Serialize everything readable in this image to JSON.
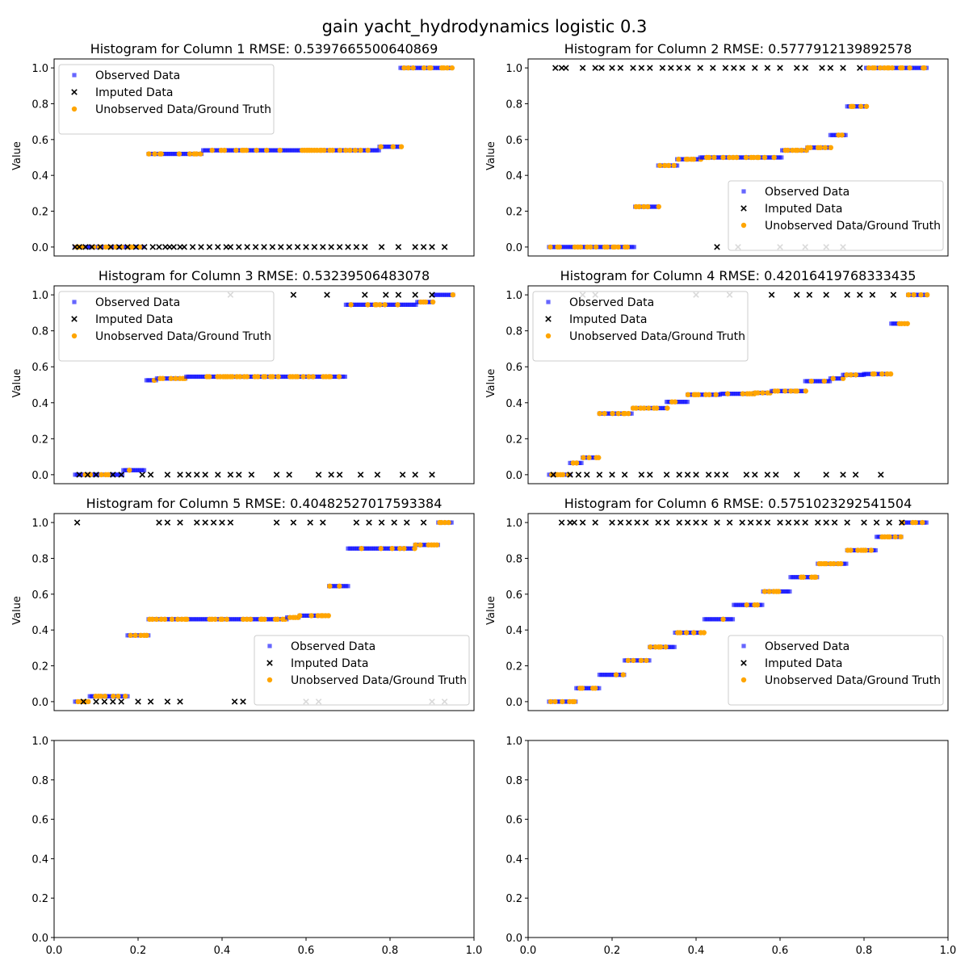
{
  "figure_title": "gain yacht_hydrodynamics logistic 0.3",
  "colors": {
    "observed": "#0000ff",
    "imputed": "#000000",
    "ground_truth": "#ffa500",
    "axes": "#000000"
  },
  "legend_labels": [
    "Observed Data",
    "Imputed Data",
    "Unobserved Data/Ground Truth"
  ],
  "chart_data": [
    {
      "type": "scatter",
      "title": "Histogram for Column 1 RMSE: 0.5397665500640869",
      "ylabel": "Value",
      "xlabel": "",
      "xlim": [
        0.0,
        1.0
      ],
      "ylim": [
        -0.05,
        1.05
      ],
      "yticks": [
        "0.0",
        "0.2",
        "0.4",
        "0.6",
        "0.8",
        "1.0"
      ],
      "xticks_visible": false,
      "legend": "upper-left",
      "steps": [
        {
          "x0": 0.05,
          "x1": 0.215,
          "y": 0.0
        },
        {
          "x0": 0.225,
          "x1": 0.355,
          "y": 0.52
        },
        {
          "x0": 0.355,
          "x1": 0.775,
          "y": 0.54
        },
        {
          "x0": 0.775,
          "x1": 0.825,
          "y": 0.56
        },
        {
          "x0": 0.825,
          "x1": 0.95,
          "y": 1.0
        }
      ],
      "imputed": {
        "x": [
          0.05,
          0.06,
          0.075,
          0.09,
          0.11,
          0.135,
          0.155,
          0.175,
          0.195,
          0.215,
          0.235,
          0.25,
          0.265,
          0.275,
          0.285,
          0.3,
          0.31,
          0.33,
          0.35,
          0.37,
          0.39,
          0.41,
          0.42,
          0.44,
          0.46,
          0.48,
          0.5,
          0.52,
          0.54,
          0.56,
          0.58,
          0.6,
          0.62,
          0.64,
          0.66,
          0.68,
          0.7,
          0.72,
          0.74,
          0.78,
          0.82,
          0.86,
          0.88,
          0.9,
          0.93
        ],
        "y": [
          0.0,
          0.0,
          0.0,
          0.0,
          0.0,
          0.0,
          0.0,
          0.0,
          0.0,
          0.0,
          0.0,
          0.0,
          0.0,
          0.0,
          0.0,
          0.0,
          0.0,
          0.0,
          0.0,
          0.0,
          0.0,
          0.0,
          0.0,
          0.0,
          0.0,
          0.0,
          0.0,
          0.0,
          0.0,
          0.0,
          0.0,
          0.0,
          0.0,
          0.0,
          0.0,
          0.0,
          0.0,
          0.0,
          0.0,
          0.0,
          0.0,
          0.0,
          0.0,
          0.0,
          0.0
        ]
      }
    },
    {
      "type": "scatter",
      "title": "Histogram for Column 2 RMSE: 0.5777912139892578",
      "ylabel": "Value",
      "xlabel": "",
      "xlim": [
        0.0,
        1.0
      ],
      "ylim": [
        -0.05,
        1.05
      ],
      "yticks": [
        "0.0",
        "0.2",
        "0.4",
        "0.6",
        "0.8",
        "1.0"
      ],
      "xticks_visible": false,
      "legend": "lower-right",
      "steps": [
        {
          "x0": 0.05,
          "x1": 0.255,
          "y": 0.0
        },
        {
          "x0": 0.255,
          "x1": 0.31,
          "y": 0.225
        },
        {
          "x0": 0.31,
          "x1": 0.355,
          "y": 0.455
        },
        {
          "x0": 0.355,
          "x1": 0.41,
          "y": 0.49
        },
        {
          "x0": 0.41,
          "x1": 0.605,
          "y": 0.5
        },
        {
          "x0": 0.605,
          "x1": 0.665,
          "y": 0.54
        },
        {
          "x0": 0.665,
          "x1": 0.72,
          "y": 0.555
        },
        {
          "x0": 0.72,
          "x1": 0.76,
          "y": 0.625
        },
        {
          "x0": 0.76,
          "x1": 0.805,
          "y": 0.785
        },
        {
          "x0": 0.805,
          "x1": 0.95,
          "y": 1.0
        }
      ],
      "imputed": {
        "x": [
          0.065,
          0.08,
          0.09,
          0.13,
          0.16,
          0.175,
          0.2,
          0.22,
          0.25,
          0.27,
          0.29,
          0.32,
          0.34,
          0.36,
          0.38,
          0.41,
          0.44,
          0.47,
          0.49,
          0.51,
          0.54,
          0.57,
          0.6,
          0.64,
          0.66,
          0.7,
          0.72,
          0.75,
          0.79,
          0.45,
          0.5,
          0.6,
          0.66,
          0.71,
          0.75
        ],
        "y": [
          1.0,
          1.0,
          1.0,
          1.0,
          1.0,
          1.0,
          1.0,
          1.0,
          1.0,
          1.0,
          1.0,
          1.0,
          1.0,
          1.0,
          1.0,
          1.0,
          1.0,
          1.0,
          1.0,
          1.0,
          1.0,
          1.0,
          1.0,
          1.0,
          1.0,
          1.0,
          1.0,
          1.0,
          1.0,
          0.0,
          0.0,
          0.0,
          0.0,
          0.0,
          0.0
        ]
      }
    },
    {
      "type": "scatter",
      "title": "Histogram for Column 3 RMSE: 0.53239506483078",
      "ylabel": "Value",
      "xlabel": "",
      "xlim": [
        0.0,
        1.0
      ],
      "ylim": [
        -0.05,
        1.05
      ],
      "yticks": [
        "0.0",
        "0.2",
        "0.4",
        "0.6",
        "0.8",
        "1.0"
      ],
      "xticks_visible": false,
      "legend": "upper-left",
      "steps": [
        {
          "x0": 0.05,
          "x1": 0.165,
          "y": 0.0
        },
        {
          "x0": 0.165,
          "x1": 0.215,
          "y": 0.025
        },
        {
          "x0": 0.22,
          "x1": 0.245,
          "y": 0.525
        },
        {
          "x0": 0.245,
          "x1": 0.315,
          "y": 0.535
        },
        {
          "x0": 0.315,
          "x1": 0.695,
          "y": 0.545
        },
        {
          "x0": 0.695,
          "x1": 0.865,
          "y": 0.945
        },
        {
          "x0": 0.865,
          "x1": 0.905,
          "y": 0.96
        },
        {
          "x0": 0.905,
          "x1": 0.95,
          "y": 1.0
        }
      ],
      "imputed": {
        "x": [
          0.06,
          0.08,
          0.1,
          0.14,
          0.16,
          0.21,
          0.23,
          0.27,
          0.3,
          0.32,
          0.34,
          0.36,
          0.39,
          0.42,
          0.44,
          0.47,
          0.53,
          0.56,
          0.63,
          0.66,
          0.68,
          0.73,
          0.77,
          0.83,
          0.86,
          0.9,
          0.42,
          0.57,
          0.65,
          0.74,
          0.79,
          0.82,
          0.86,
          0.9
        ],
        "y": [
          0.0,
          0.0,
          0.0,
          0.0,
          0.0,
          0.0,
          0.0,
          0.0,
          0.0,
          0.0,
          0.0,
          0.0,
          0.0,
          0.0,
          0.0,
          0.0,
          0.0,
          0.0,
          0.0,
          0.0,
          0.0,
          0.0,
          0.0,
          0.0,
          0.0,
          0.0,
          1.0,
          1.0,
          1.0,
          1.0,
          1.0,
          1.0,
          1.0,
          1.0
        ]
      }
    },
    {
      "type": "scatter",
      "title": "Histogram for Column 4 RMSE: 0.42016419768333435",
      "ylabel": "Value",
      "xlabel": "",
      "xlim": [
        0.0,
        1.0
      ],
      "ylim": [
        -0.05,
        1.05
      ],
      "yticks": [
        "0.0",
        "0.2",
        "0.4",
        "0.6",
        "0.8",
        "1.0"
      ],
      "xticks_visible": false,
      "legend": "upper-left",
      "steps": [
        {
          "x0": 0.05,
          "x1": 0.1,
          "y": 0.0
        },
        {
          "x0": 0.1,
          "x1": 0.13,
          "y": 0.065
        },
        {
          "x0": 0.13,
          "x1": 0.17,
          "y": 0.095
        },
        {
          "x0": 0.17,
          "x1": 0.25,
          "y": 0.34
        },
        {
          "x0": 0.25,
          "x1": 0.33,
          "y": 0.37
        },
        {
          "x0": 0.33,
          "x1": 0.38,
          "y": 0.405
        },
        {
          "x0": 0.38,
          "x1": 0.46,
          "y": 0.445
        },
        {
          "x0": 0.46,
          "x1": 0.54,
          "y": 0.45
        },
        {
          "x0": 0.54,
          "x1": 0.58,
          "y": 0.455
        },
        {
          "x0": 0.58,
          "x1": 0.66,
          "y": 0.465
        },
        {
          "x0": 0.66,
          "x1": 0.72,
          "y": 0.52
        },
        {
          "x0": 0.72,
          "x1": 0.75,
          "y": 0.535
        },
        {
          "x0": 0.75,
          "x1": 0.8,
          "y": 0.555
        },
        {
          "x0": 0.8,
          "x1": 0.865,
          "y": 0.56
        },
        {
          "x0": 0.865,
          "x1": 0.905,
          "y": 0.84
        },
        {
          "x0": 0.905,
          "x1": 0.95,
          "y": 1.0
        }
      ],
      "imputed": {
        "x": [
          0.06,
          0.1,
          0.12,
          0.14,
          0.17,
          0.2,
          0.23,
          0.27,
          0.29,
          0.33,
          0.36,
          0.38,
          0.4,
          0.43,
          0.45,
          0.47,
          0.52,
          0.54,
          0.57,
          0.59,
          0.64,
          0.71,
          0.75,
          0.78,
          0.84,
          0.13,
          0.16,
          0.4,
          0.48,
          0.58,
          0.64,
          0.67,
          0.71,
          0.76,
          0.79,
          0.82,
          0.87
        ],
        "y": [
          0.0,
          0.0,
          0.0,
          0.0,
          0.0,
          0.0,
          0.0,
          0.0,
          0.0,
          0.0,
          0.0,
          0.0,
          0.0,
          0.0,
          0.0,
          0.0,
          0.0,
          0.0,
          0.0,
          0.0,
          0.0,
          0.0,
          0.0,
          0.0,
          0.0,
          1.0,
          1.0,
          1.0,
          1.0,
          1.0,
          1.0,
          1.0,
          1.0,
          1.0,
          1.0,
          1.0,
          1.0
        ]
      }
    },
    {
      "type": "scatter",
      "title": "Histogram for Column 5 RMSE: 0.40482527017593384",
      "ylabel": "Value",
      "xlabel": "",
      "xlim": [
        0.0,
        1.0
      ],
      "ylim": [
        -0.05,
        1.05
      ],
      "yticks": [
        "0.0",
        "0.2",
        "0.4",
        "0.6",
        "0.8",
        "1.0"
      ],
      "xticks_visible": false,
      "legend": "lower-right",
      "steps": [
        {
          "x0": 0.05,
          "x1": 0.085,
          "y": 0.0
        },
        {
          "x0": 0.085,
          "x1": 0.175,
          "y": 0.03
        },
        {
          "x0": 0.175,
          "x1": 0.225,
          "y": 0.37
        },
        {
          "x0": 0.225,
          "x1": 0.555,
          "y": 0.46
        },
        {
          "x0": 0.555,
          "x1": 0.585,
          "y": 0.47
        },
        {
          "x0": 0.585,
          "x1": 0.655,
          "y": 0.48
        },
        {
          "x0": 0.655,
          "x1": 0.7,
          "y": 0.645
        },
        {
          "x0": 0.7,
          "x1": 0.86,
          "y": 0.855
        },
        {
          "x0": 0.86,
          "x1": 0.915,
          "y": 0.875
        },
        {
          "x0": 0.915,
          "x1": 0.95,
          "y": 1.0
        }
      ],
      "imputed": {
        "x": [
          0.055,
          0.25,
          0.27,
          0.3,
          0.34,
          0.36,
          0.38,
          0.4,
          0.42,
          0.53,
          0.57,
          0.61,
          0.64,
          0.72,
          0.75,
          0.78,
          0.81,
          0.84,
          0.88,
          0.07,
          0.1,
          0.12,
          0.14,
          0.16,
          0.2,
          0.23,
          0.27,
          0.3,
          0.43,
          0.45,
          0.6,
          0.63,
          0.9,
          0.93
        ],
        "y": [
          1.0,
          1.0,
          1.0,
          1.0,
          1.0,
          1.0,
          1.0,
          1.0,
          1.0,
          1.0,
          1.0,
          1.0,
          1.0,
          1.0,
          1.0,
          1.0,
          1.0,
          1.0,
          1.0,
          0.0,
          0.0,
          0.0,
          0.0,
          0.0,
          0.0,
          0.0,
          0.0,
          0.0,
          0.0,
          0.0,
          0.0,
          0.0,
          0.0,
          0.0
        ]
      }
    },
    {
      "type": "scatter",
      "title": "Histogram for Column 6 RMSE: 0.5751023292541504",
      "ylabel": "Value",
      "xlabel": "",
      "xlim": [
        0.0,
        1.0
      ],
      "ylim": [
        -0.05,
        1.05
      ],
      "yticks": [
        "0.0",
        "0.2",
        "0.4",
        "0.6",
        "0.8",
        "1.0"
      ],
      "xticks_visible": false,
      "legend": "lower-right",
      "steps": [
        {
          "x0": 0.05,
          "x1": 0.115,
          "y": 0.0
        },
        {
          "x0": 0.115,
          "x1": 0.17,
          "y": 0.075
        },
        {
          "x0": 0.17,
          "x1": 0.23,
          "y": 0.15
        },
        {
          "x0": 0.23,
          "x1": 0.29,
          "y": 0.23
        },
        {
          "x0": 0.29,
          "x1": 0.35,
          "y": 0.305
        },
        {
          "x0": 0.35,
          "x1": 0.42,
          "y": 0.385
        },
        {
          "x0": 0.42,
          "x1": 0.49,
          "y": 0.46
        },
        {
          "x0": 0.49,
          "x1": 0.56,
          "y": 0.54
        },
        {
          "x0": 0.56,
          "x1": 0.625,
          "y": 0.615
        },
        {
          "x0": 0.625,
          "x1": 0.69,
          "y": 0.695
        },
        {
          "x0": 0.69,
          "x1": 0.76,
          "y": 0.77
        },
        {
          "x0": 0.76,
          "x1": 0.83,
          "y": 0.845
        },
        {
          "x0": 0.83,
          "x1": 0.89,
          "y": 0.92
        },
        {
          "x0": 0.89,
          "x1": 0.95,
          "y": 1.0
        }
      ],
      "imputed": {
        "x": [
          0.08,
          0.1,
          0.11,
          0.13,
          0.16,
          0.2,
          0.22,
          0.24,
          0.26,
          0.28,
          0.31,
          0.33,
          0.36,
          0.38,
          0.4,
          0.42,
          0.45,
          0.48,
          0.51,
          0.53,
          0.55,
          0.57,
          0.6,
          0.62,
          0.64,
          0.66,
          0.69,
          0.71,
          0.73,
          0.76,
          0.8,
          0.83,
          0.86,
          0.89
        ],
        "y": [
          1.0,
          1.0,
          1.0,
          1.0,
          1.0,
          1.0,
          1.0,
          1.0,
          1.0,
          1.0,
          1.0,
          1.0,
          1.0,
          1.0,
          1.0,
          1.0,
          1.0,
          1.0,
          1.0,
          1.0,
          1.0,
          1.0,
          1.0,
          1.0,
          1.0,
          1.0,
          1.0,
          1.0,
          1.0,
          1.0,
          1.0,
          1.0,
          1.0,
          1.0
        ]
      }
    },
    {
      "type": "scatter",
      "title": "",
      "xlim": [
        0.0,
        1.0
      ],
      "ylim": [
        0.0,
        1.0
      ],
      "xticks": [
        "0.0",
        "0.2",
        "0.4",
        "0.6",
        "0.8",
        "1.0"
      ],
      "yticks": [
        "0.0",
        "0.2",
        "0.4",
        "0.6",
        "0.8",
        "1.0"
      ],
      "xticks_visible": true,
      "empty": true
    },
    {
      "type": "scatter",
      "title": "",
      "xlim": [
        0.0,
        1.0
      ],
      "ylim": [
        0.0,
        1.0
      ],
      "xticks": [
        "0.0",
        "0.2",
        "0.4",
        "0.6",
        "0.8",
        "1.0"
      ],
      "yticks": [
        "0.0",
        "0.2",
        "0.4",
        "0.6",
        "0.8",
        "1.0"
      ],
      "xticks_visible": true,
      "empty": true
    }
  ]
}
